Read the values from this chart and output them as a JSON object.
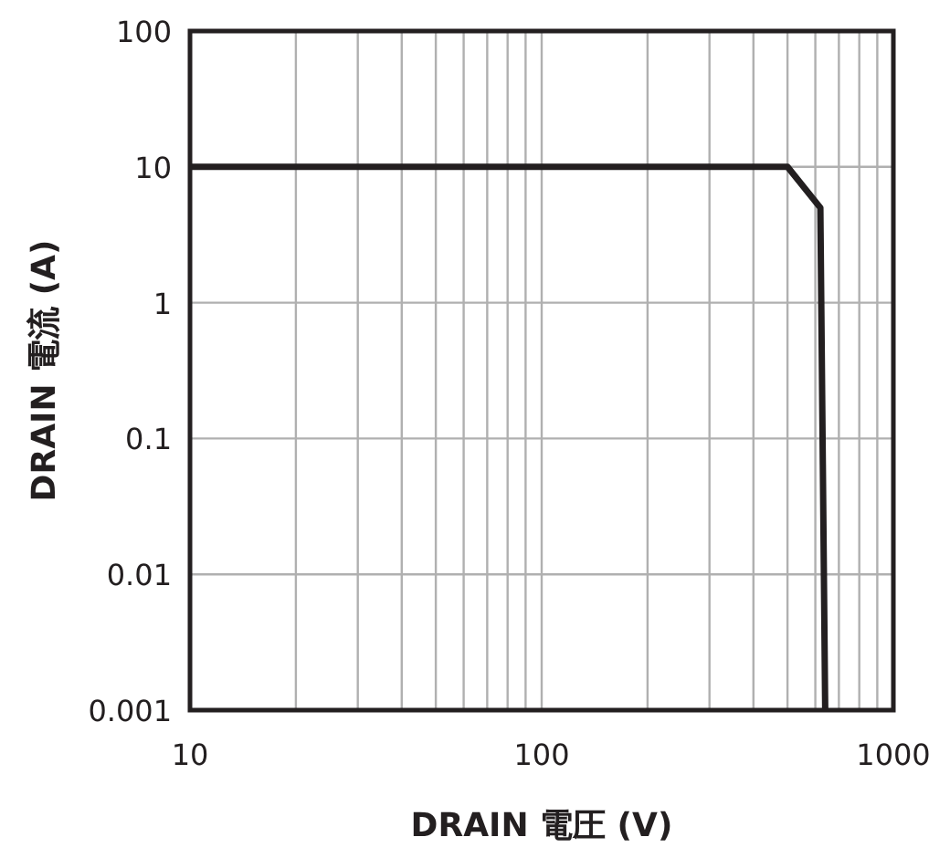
{
  "chart_data": {
    "type": "line",
    "xlabel": "DRAIN 電圧 (V)",
    "ylabel": "DRAIN 電流 (A)",
    "x": [
      10,
      500,
      620,
      640
    ],
    "series": [
      {
        "color": "#231f20",
        "values": [
          10,
          10,
          5,
          0.001
        ]
      }
    ],
    "log": "xy",
    "xlim": [
      10,
      1000
    ],
    "ylim": [
      0.001,
      100
    ],
    "xticks": [
      10,
      100,
      1000
    ],
    "yticks": [
      0.001,
      0.01,
      0.1,
      1,
      10,
      100
    ],
    "grid": true,
    "marker": "none",
    "line_style": "solid"
  }
}
